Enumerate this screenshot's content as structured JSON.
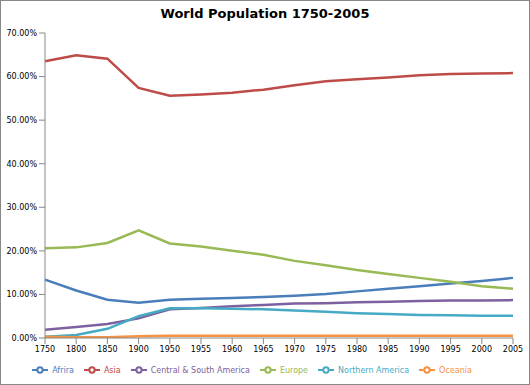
{
  "chart_data": {
    "type": "line",
    "title": "World Population 1750-2005",
    "categories": [
      "1750",
      "1800",
      "1850",
      "1900",
      "1950",
      "1955",
      "1960",
      "1965",
      "1970",
      "1975",
      "1980",
      "1985",
      "1990",
      "1995",
      "2000",
      "2005"
    ],
    "series": [
      {
        "name": "Afrira",
        "color": "#4a7ebb",
        "values": [
          13.4,
          10.9,
          8.8,
          8.1,
          8.8,
          9.0,
          9.2,
          9.4,
          9.7,
          10.1,
          10.7,
          11.3,
          11.9,
          12.5,
          13.1,
          13.8
        ]
      },
      {
        "name": "Asia",
        "color": "#be4b48",
        "values": [
          63.5,
          64.9,
          64.1,
          57.4,
          55.6,
          55.9,
          56.3,
          57.0,
          58.0,
          58.9,
          59.4,
          59.8,
          60.3,
          60.6,
          60.7,
          60.8
        ]
      },
      {
        "name": "Europe",
        "color": "#98b954",
        "values": [
          20.6,
          20.8,
          21.8,
          24.7,
          21.7,
          21.0,
          20.0,
          19.1,
          17.7,
          16.7,
          15.6,
          14.7,
          13.8,
          12.9,
          11.9,
          11.3
        ]
      },
      {
        "name": "Central & South America",
        "color": "#7d60a0",
        "values": [
          1.9,
          2.5,
          3.2,
          4.5,
          6.6,
          6.9,
          7.3,
          7.6,
          7.9,
          8.0,
          8.2,
          8.3,
          8.5,
          8.6,
          8.6,
          8.7
        ]
      },
      {
        "name": "Northern America",
        "color": "#46aac5",
        "values": [
          0.3,
          0.7,
          2.1,
          5.0,
          6.8,
          6.8,
          6.7,
          6.6,
          6.3,
          6.0,
          5.7,
          5.5,
          5.3,
          5.2,
          5.1,
          5.1
        ]
      },
      {
        "name": "Oceania",
        "color": "#f69240",
        "values": [
          0.3,
          0.2,
          0.2,
          0.4,
          0.5,
          0.5,
          0.5,
          0.5,
          0.5,
          0.5,
          0.5,
          0.5,
          0.5,
          0.5,
          0.5,
          0.5
        ]
      }
    ],
    "ylim": [
      0,
      70
    ],
    "yticks": [
      {
        "value": 0,
        "label": "0.00%"
      },
      {
        "value": 10,
        "label": "10.00%"
      },
      {
        "value": 20,
        "label": "20.00%"
      },
      {
        "value": 30,
        "label": "30.00%"
      },
      {
        "value": 40,
        "label": "40.00%"
      },
      {
        "value": 50,
        "label": "50.00%"
      },
      {
        "value": 60,
        "label": "60.00%"
      },
      {
        "value": 70,
        "label": "70.00%"
      }
    ],
    "grid": false,
    "legend": "bottom"
  }
}
